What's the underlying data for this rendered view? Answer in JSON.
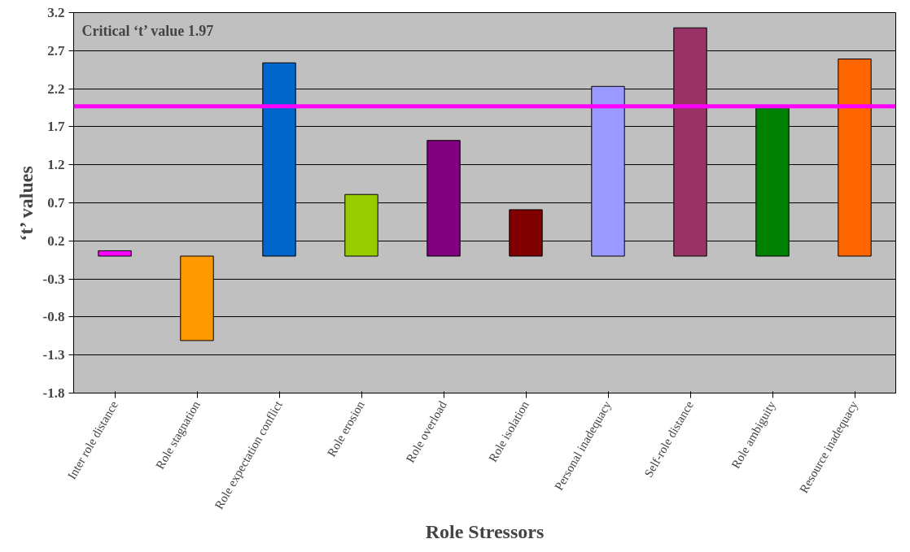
{
  "chart_data": {
    "type": "bar",
    "xlabel": "Role Stressors",
    "ylabel": "‘t’ values",
    "categories": [
      "Inter role distance",
      "Role stagnation",
      "Role expectation conflict",
      "Role erosion",
      "Role overload",
      "Role isolation",
      "Personal inadequacy",
      "Self-role distance",
      "Role ambiguity",
      "Resource inadequacy"
    ],
    "values": [
      0.07,
      -1.11,
      2.54,
      0.81,
      1.52,
      0.61,
      2.23,
      3.0,
      1.98,
      2.59
    ],
    "colors": [
      "#ff00ff",
      "#ff9900",
      "#0066cc",
      "#99cc00",
      "#800080",
      "#800000",
      "#9999ff",
      "#993366",
      "#008000",
      "#ff6600"
    ],
    "ylim": [
      -1.8,
      3.2
    ],
    "yticks": [
      -1.8,
      -1.3,
      -0.8,
      -0.3,
      0.2,
      0.7,
      1.2,
      1.7,
      2.2,
      2.7,
      3.2
    ],
    "grid": "y",
    "ref_lines": [
      {
        "axis": "y",
        "value": 1.97,
        "color": "#ff00ff"
      }
    ],
    "annotations": [
      "Critical  ‘t’ value 1.97"
    ]
  }
}
